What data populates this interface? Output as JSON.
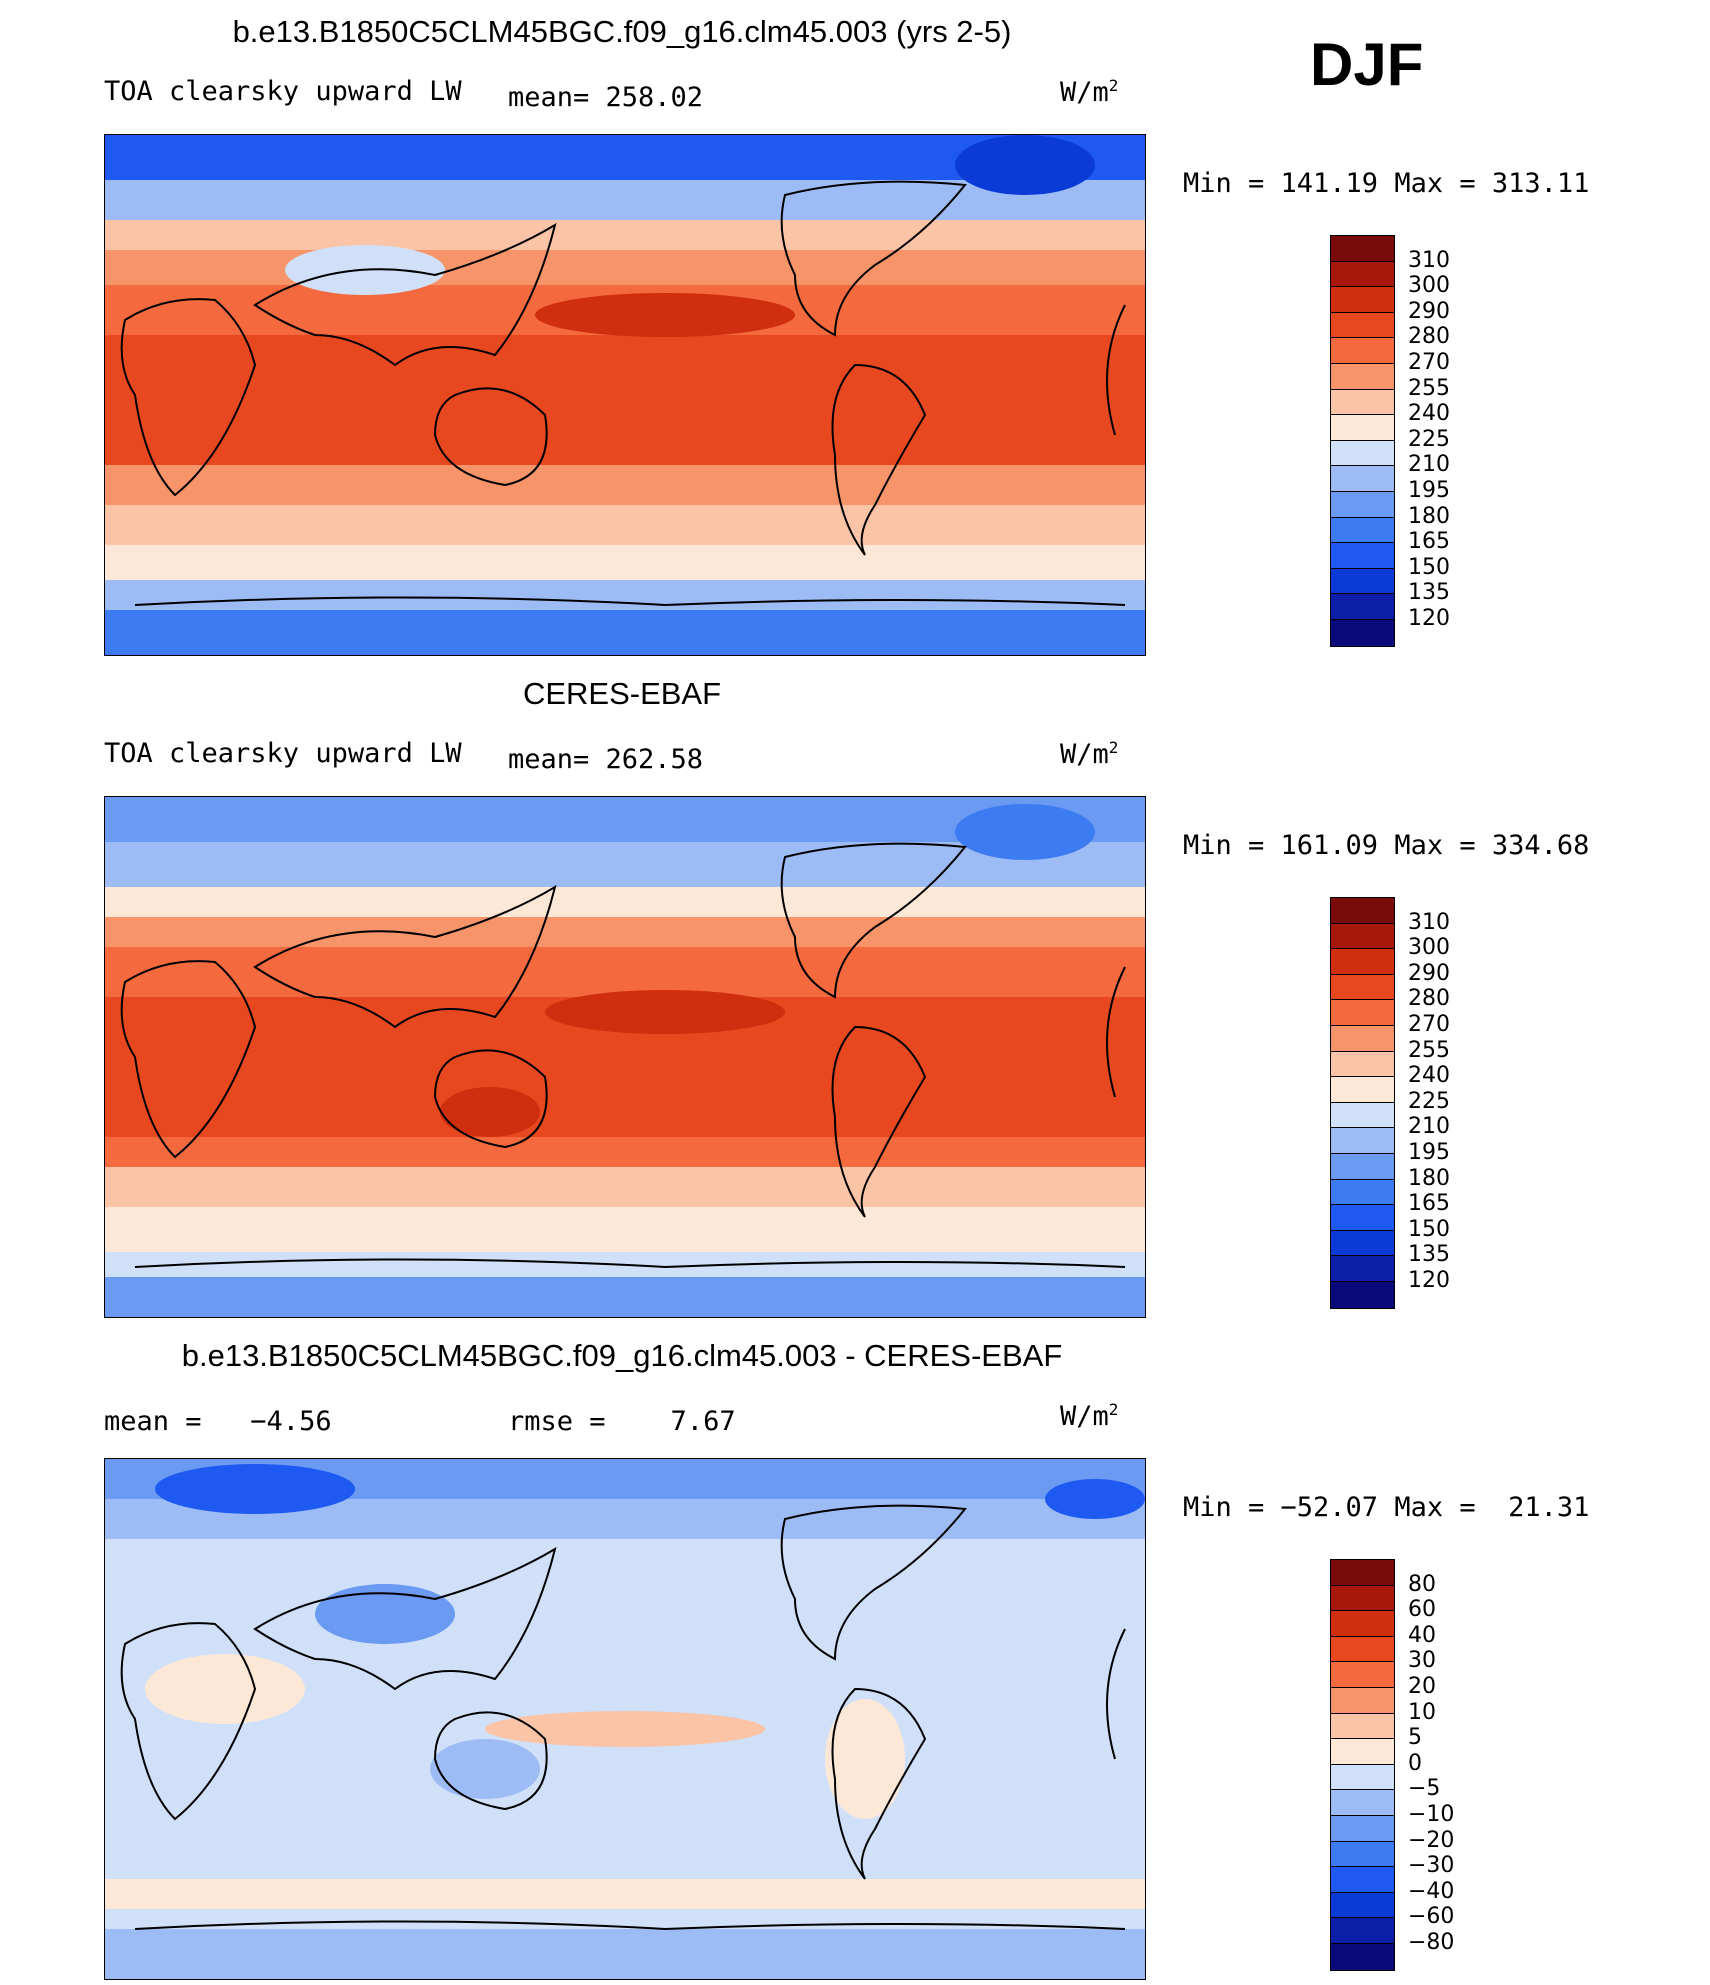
{
  "season": "DJF",
  "units": "W/m",
  "units_sup": "2",
  "palette_abs": [
    "#0a0a7a",
    "#0b1ea8",
    "#0b3bd6",
    "#1e5af2",
    "#3d7bf2",
    "#6a9af2",
    "#9dbcf5",
    "#cfe0f8",
    "#fde8d8",
    "#fbc4a6",
    "#f8946a",
    "#f46a3e",
    "#e8481f",
    "#cf2e0f",
    "#a8180a",
    "#7a0b0b"
  ],
  "palette_diff": [
    "#0a0a7a",
    "#0b1ea8",
    "#0b3bd6",
    "#1e5af2",
    "#3d7bf2",
    "#6a9af2",
    "#9dbcf5",
    "#cfe0f8",
    "#fde8d8",
    "#fbc4a6",
    "#f8946a",
    "#f46a3e",
    "#e8481f",
    "#cf2e0f",
    "#a8180a",
    "#7a0b0b"
  ],
  "panels": [
    {
      "title": "b.e13.B1850C5CLM45BGC.f09_g16.clm45.003 (yrs 2-5)",
      "left_label": "TOA clearsky upward LW",
      "mid_label": "mean= 258.02",
      "minmax": "Min = 141.19 Max = 313.11",
      "legend_ticks": [
        "310",
        "300",
        "290",
        "280",
        "270",
        "255",
        "240",
        "225",
        "210",
        "195",
        "180",
        "165",
        "150",
        "135",
        "120"
      ]
    },
    {
      "title": "CERES-EBAF",
      "left_label": "TOA clearsky upward LW",
      "mid_label": "mean= 262.58",
      "minmax": "Min = 161.09 Max = 334.68",
      "legend_ticks": [
        "310",
        "300",
        "290",
        "280",
        "270",
        "255",
        "240",
        "225",
        "210",
        "195",
        "180",
        "165",
        "150",
        "135",
        "120"
      ]
    },
    {
      "title": "b.e13.B1850C5CLM45BGC.f09_g16.clm45.003 - CERES-EBAF",
      "left_label": "mean =   −4.56",
      "mid_label": "rmse =    7.67",
      "minmax": "Min = −52.07 Max =  21.31",
      "legend_ticks": [
        "80",
        "60",
        "40",
        "30",
        "20",
        "10",
        "5",
        "0",
        "−5",
        "−10",
        "−20",
        "−30",
        "−40",
        "−60",
        "−80"
      ]
    }
  ]
}
